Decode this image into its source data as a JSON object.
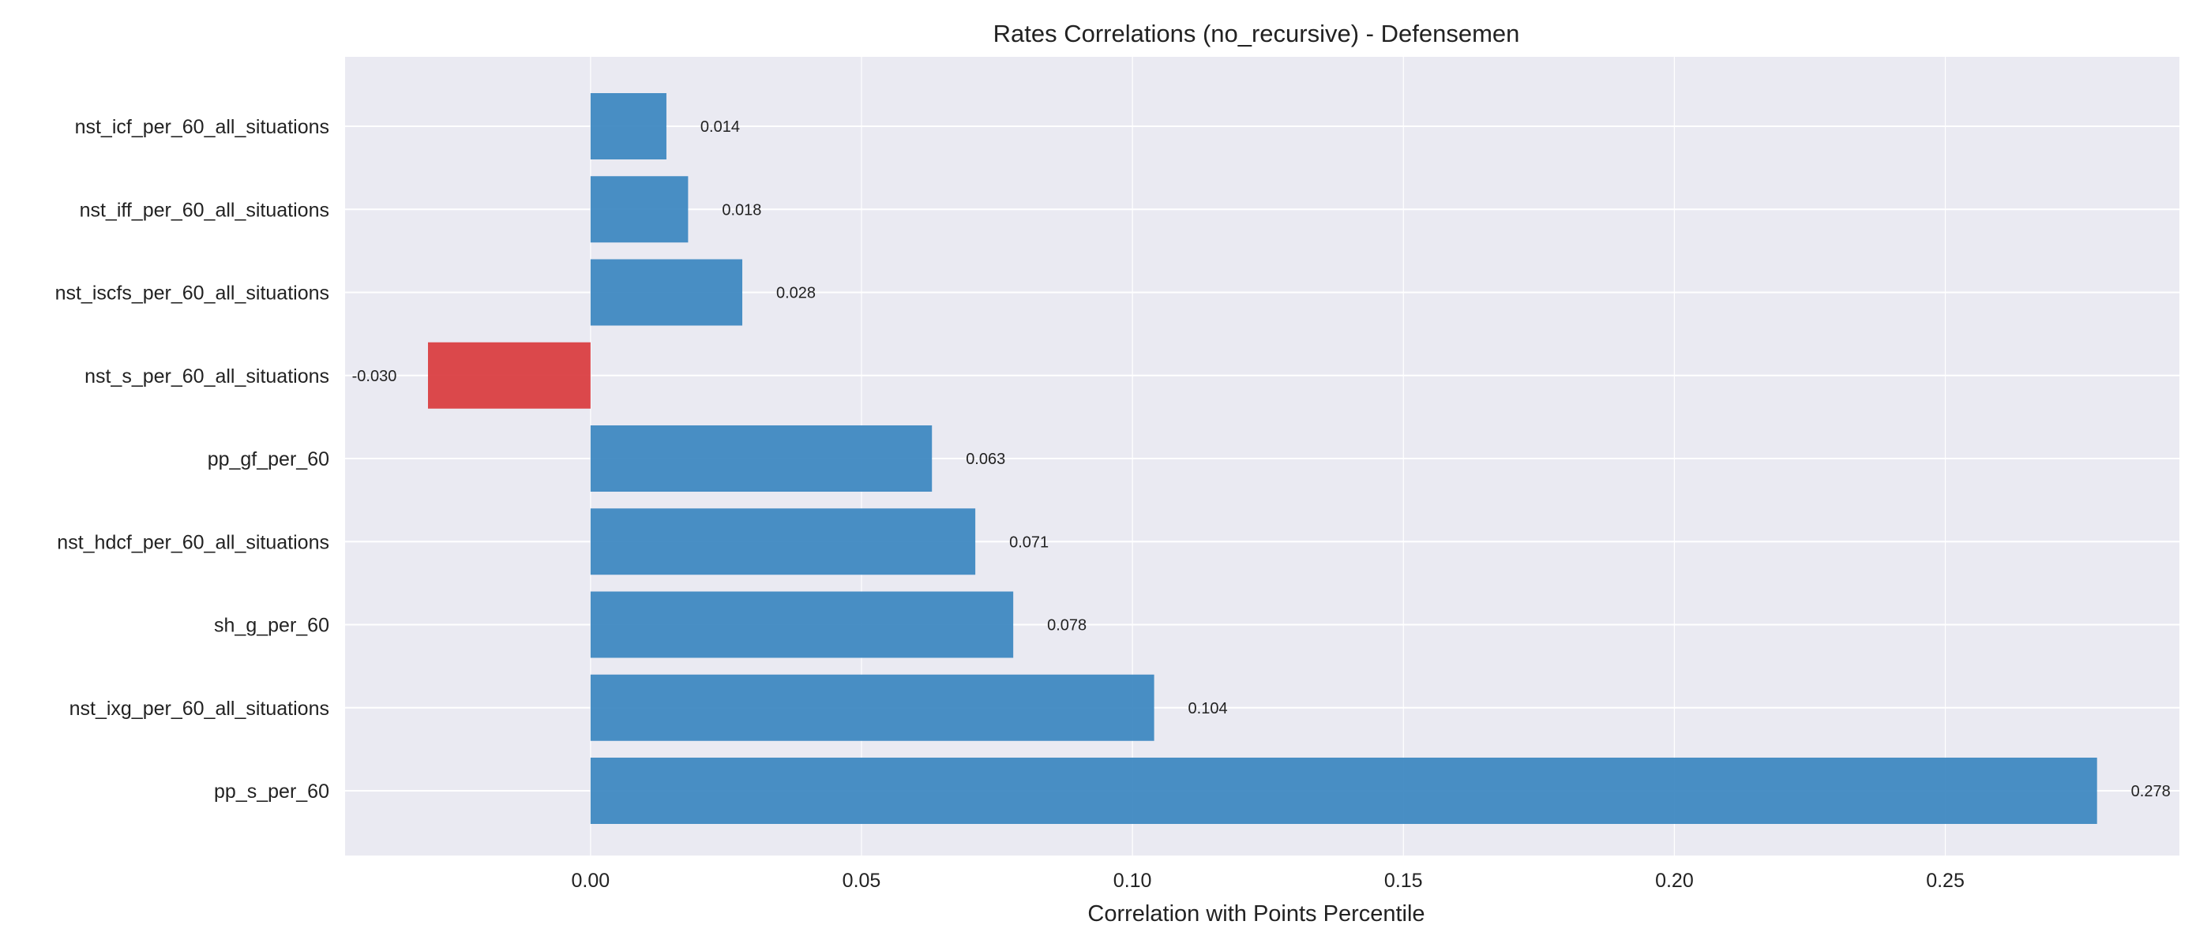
{
  "chart_data": {
    "type": "bar",
    "orientation": "horizontal",
    "title": "Rates Correlations (no_recursive) - Defensemen",
    "xlabel": "Correlation with Points Percentile",
    "ylabel": "",
    "categories": [
      "nst_icf_per_60_all_situations",
      "nst_iff_per_60_all_situations",
      "nst_iscfs_per_60_all_situations",
      "nst_s_per_60_all_situations",
      "pp_gf_per_60",
      "nst_hdcf_per_60_all_situations",
      "sh_g_per_60",
      "nst_ixg_per_60_all_situations",
      "pp_s_per_60"
    ],
    "values": [
      0.014,
      0.018,
      0.028,
      -0.03,
      0.063,
      0.071,
      0.078,
      0.104,
      0.278
    ],
    "value_labels": [
      "0.014",
      "0.018",
      "0.028",
      "-0.030",
      "0.063",
      "0.071",
      "0.078",
      "0.104",
      "0.278"
    ],
    "xlim": [
      -0.0453,
      0.2932
    ],
    "xticks": [
      0.0,
      0.05,
      0.1,
      0.15,
      0.2,
      0.25
    ],
    "xtick_labels": [
      "0.00",
      "0.05",
      "0.10",
      "0.15",
      "0.20",
      "0.25"
    ],
    "grid": true,
    "colors": {
      "positive": "#3a86c0",
      "negative": "#d93a3d",
      "plot_background": "#eaeaf2",
      "grid": "#ffffff"
    }
  }
}
